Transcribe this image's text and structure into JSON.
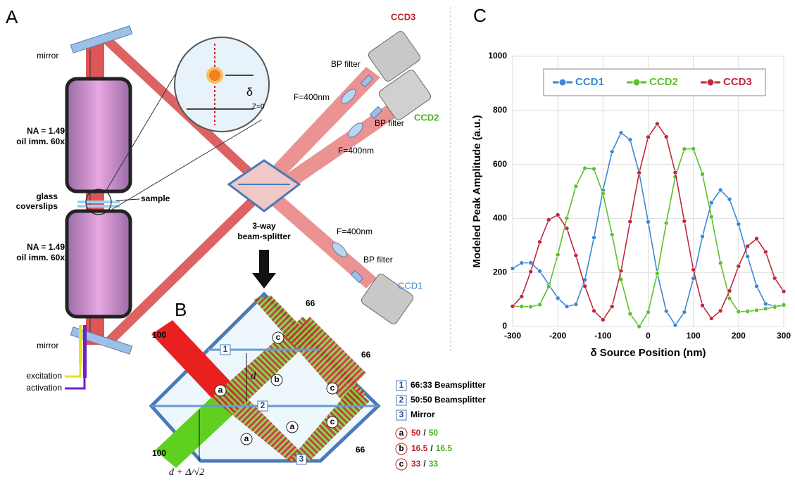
{
  "panel_a": {
    "label": "A",
    "mirror_top": "mirror",
    "mirror_bottom": "mirror",
    "objective_top": [
      "NA = 1.49",
      "oil imm. 60x"
    ],
    "objective_bottom": [
      "NA = 1.49",
      "oil imm. 60x"
    ],
    "coverslips": [
      "glass",
      "coverslips"
    ],
    "sample": "sample",
    "excitation": "excitation",
    "activation": "activation",
    "delta": "δ",
    "z0": "Z=0",
    "cameras": [
      "CCD1",
      "CCD2",
      "CCD3"
    ],
    "bp_filter": "BP filter",
    "lens": "F=400nm",
    "splitter": [
      "3-way",
      "beam-splitter"
    ]
  },
  "panel_b": {
    "label": "B",
    "input": "100",
    "output": "66",
    "d": "d",
    "d_delta": "d + Δ/√2",
    "legend": [
      {
        "key": "1",
        "text": "66:33 Beamsplitter"
      },
      {
        "key": "2",
        "text": "50:50 Beamsplitter"
      },
      {
        "key": "3",
        "text": "Mirror"
      }
    ],
    "ratios": [
      {
        "key": "a",
        "left": "50",
        "right": "50"
      },
      {
        "key": "b",
        "left": "16.5",
        "right": "16.5"
      },
      {
        "key": "c",
        "left": "33",
        "right": "33"
      }
    ],
    "separator": "/"
  },
  "chart_data": {
    "type": "line",
    "label": "C",
    "xlabel": "δ Source Position (nm)",
    "ylabel": "Modeled Peak Amplitude (a.u.)",
    "x": [
      -300,
      -280,
      -260,
      -240,
      -220,
      -200,
      -180,
      -160,
      -140,
      -120,
      -100,
      -80,
      -60,
      -40,
      -20,
      0,
      20,
      40,
      60,
      80,
      100,
      120,
      140,
      160,
      180,
      200,
      220,
      240,
      260,
      280,
      300
    ],
    "series": [
      {
        "name": "CCD1",
        "color": "#3b86d6",
        "values": [
          215,
          235,
          236,
          205,
          155,
          105,
          74,
          82,
          173,
          329,
          504,
          647,
          717,
          691,
          569,
          387,
          198,
          57,
          5,
          53,
          178,
          333,
          458,
          505,
          471,
          379,
          259,
          149,
          84,
          75,
          78
        ]
      },
      {
        "name": "CCD2",
        "color": "#5cc22a",
        "values": [
          75,
          74,
          73,
          81,
          148,
          266,
          401,
          519,
          586,
          583,
          492,
          340,
          174,
          47,
          0,
          53,
          196,
          383,
          554,
          657,
          658,
          564,
          406,
          235,
          104,
          55,
          56,
          60,
          66,
          72,
          80
        ]
      },
      {
        "name": "CCD3",
        "color": "#c0283a",
        "values": [
          75,
          111,
          203,
          313,
          395,
          413,
          363,
          263,
          149,
          58,
          25,
          74,
          206,
          388,
          569,
          701,
          750,
          702,
          570,
          390,
          210,
          78,
          30,
          58,
          132,
          223,
          297,
          325,
          276,
          179,
          130
        ]
      }
    ],
    "xlim": [
      -300,
      300
    ],
    "ylim": [
      0,
      1000
    ],
    "xticks": [
      -300,
      -200,
      -100,
      0,
      100,
      200,
      300
    ],
    "yticks": [
      0,
      200,
      400,
      600,
      800,
      1000
    ],
    "grid": true,
    "legend": "top"
  }
}
